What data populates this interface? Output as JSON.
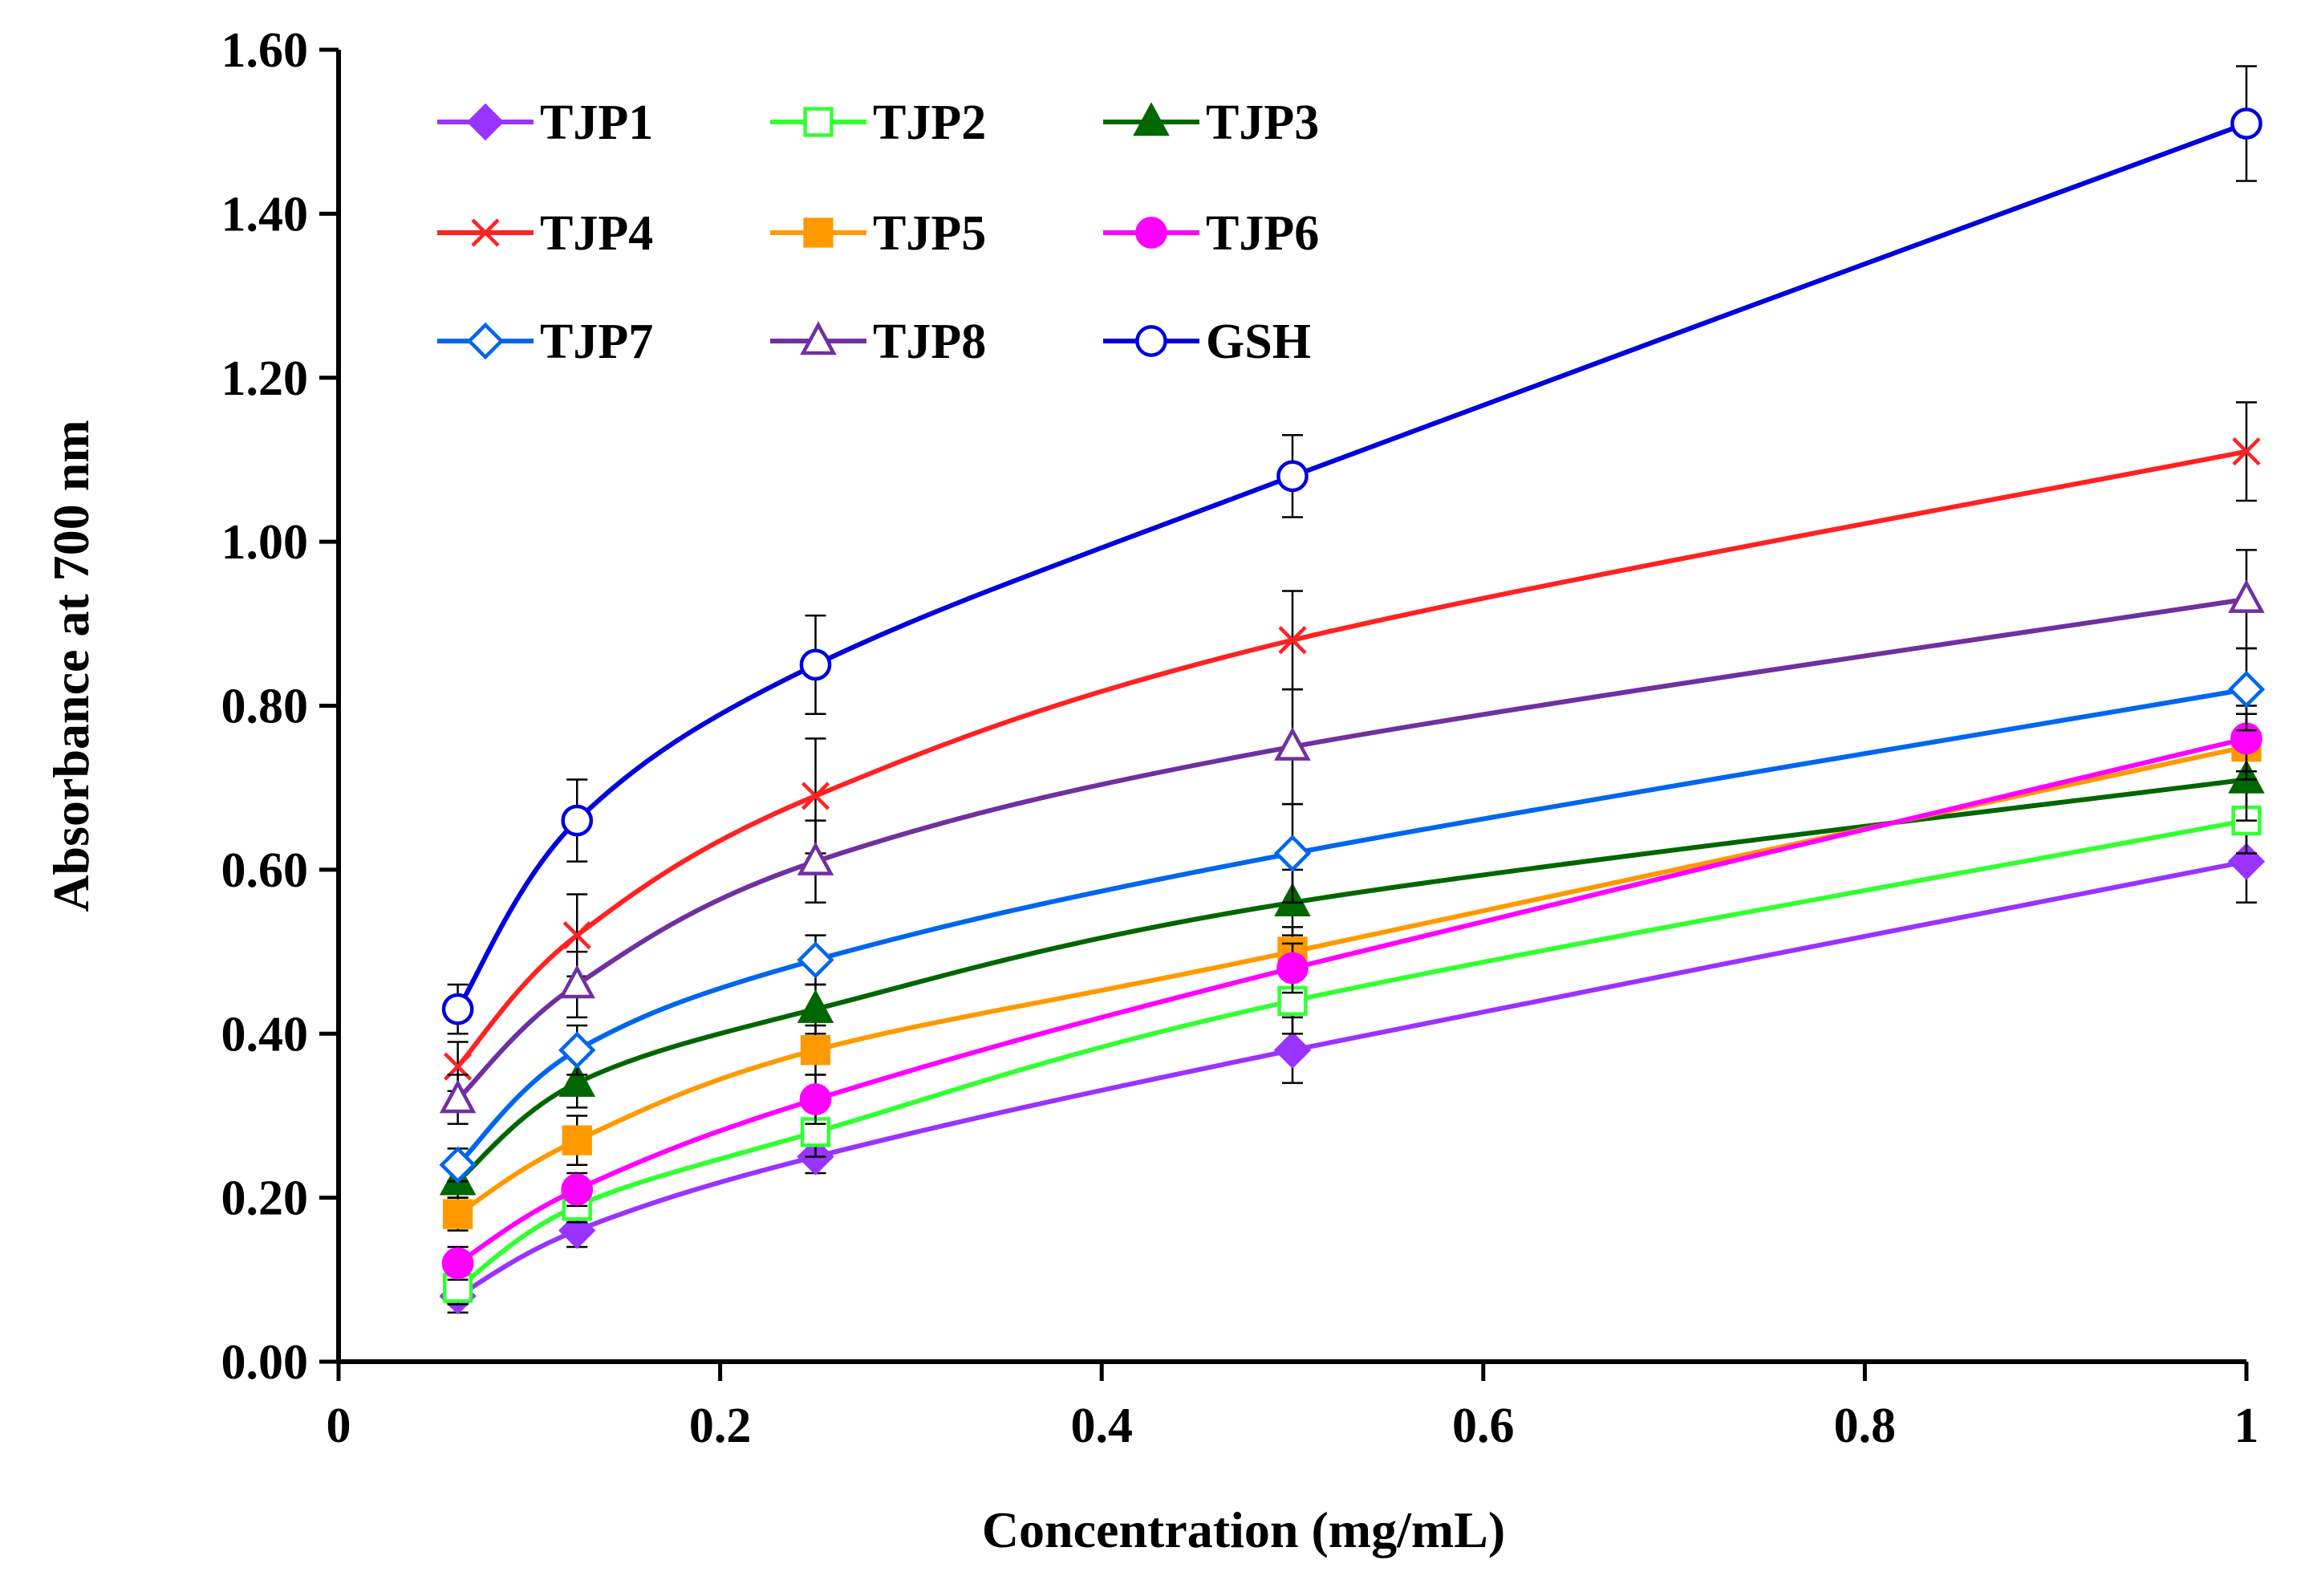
{
  "chart_data": {
    "type": "line",
    "title": "",
    "xlabel": "Concentration (mg/mL)",
    "ylabel": "Absorbance at 700 nm",
    "xlim": [
      0,
      1
    ],
    "ylim": [
      0,
      1.6
    ],
    "x_ticks": [
      0,
      0.2,
      0.4,
      0.6,
      0.8,
      1
    ],
    "x_tick_labels": [
      "0",
      "0.2",
      "0.4",
      "0.6",
      "0.8",
      "1"
    ],
    "y_ticks": [
      0,
      0.2,
      0.4,
      0.6,
      0.8,
      1.0,
      1.2,
      1.4,
      1.6
    ],
    "y_tick_labels": [
      "0.00",
      "0.20",
      "0.40",
      "0.60",
      "0.80",
      "1.00",
      "1.20",
      "1.40",
      "1.60"
    ],
    "grid": false,
    "legend_position": "top-left",
    "x": [
      0.0625,
      0.125,
      0.25,
      0.5,
      1.0
    ],
    "series": [
      {
        "name": "TJP1",
        "color": "#9933ff",
        "marker": "diamond",
        "filled": true,
        "values": [
          0.08,
          0.16,
          0.25,
          0.38,
          0.61
        ],
        "errors": [
          0.02,
          0.02,
          0.02,
          0.04,
          0.05
        ]
      },
      {
        "name": "TJP2",
        "color": "#33ff33",
        "marker": "square",
        "filled": false,
        "values": [
          0.09,
          0.19,
          0.28,
          0.44,
          0.66
        ],
        "errors": [
          0.02,
          0.02,
          0.03,
          0.04,
          0.04
        ]
      },
      {
        "name": "TJP3",
        "color": "#006600",
        "marker": "triangle",
        "filled": true,
        "values": [
          0.22,
          0.34,
          0.43,
          0.56,
          0.71
        ],
        "errors": [
          0.02,
          0.03,
          0.03,
          0.04,
          0.05
        ]
      },
      {
        "name": "TJP4",
        "color": "#ff2222",
        "marker": "x",
        "filled": false,
        "values": [
          0.36,
          0.52,
          0.69,
          0.88,
          1.11
        ],
        "errors": [
          0.03,
          0.05,
          0.07,
          0.06,
          0.06
        ]
      },
      {
        "name": "TJP5",
        "color": "#ff9900",
        "marker": "square",
        "filled": true,
        "values": [
          0.18,
          0.27,
          0.38,
          0.5,
          0.75
        ],
        "errors": [
          0.02,
          0.03,
          0.03,
          0.03,
          0.04
        ]
      },
      {
        "name": "TJP6",
        "color": "#ff00ff",
        "marker": "circle",
        "filled": true,
        "values": [
          0.12,
          0.21,
          0.32,
          0.48,
          0.76
        ],
        "errors": [
          0.02,
          0.02,
          0.03,
          0.03,
          0.04
        ]
      },
      {
        "name": "TJP7",
        "color": "#0066ee",
        "marker": "diamond",
        "filled": false,
        "values": [
          0.24,
          0.38,
          0.49,
          0.62,
          0.82
        ],
        "errors": [
          0.02,
          0.03,
          0.03,
          0.06,
          0.05
        ]
      },
      {
        "name": "TJP8",
        "color": "#7030a0",
        "marker": "triangle",
        "filled": false,
        "values": [
          0.32,
          0.46,
          0.61,
          0.75,
          0.93
        ],
        "errors": [
          0.03,
          0.04,
          0.05,
          0.07,
          0.06
        ]
      },
      {
        "name": "GSH",
        "color": "#0000dd",
        "marker": "circle",
        "filled": false,
        "values": [
          0.43,
          0.66,
          0.85,
          1.08,
          1.51
        ],
        "errors": [
          0.03,
          0.05,
          0.06,
          0.05,
          0.07
        ]
      }
    ]
  }
}
